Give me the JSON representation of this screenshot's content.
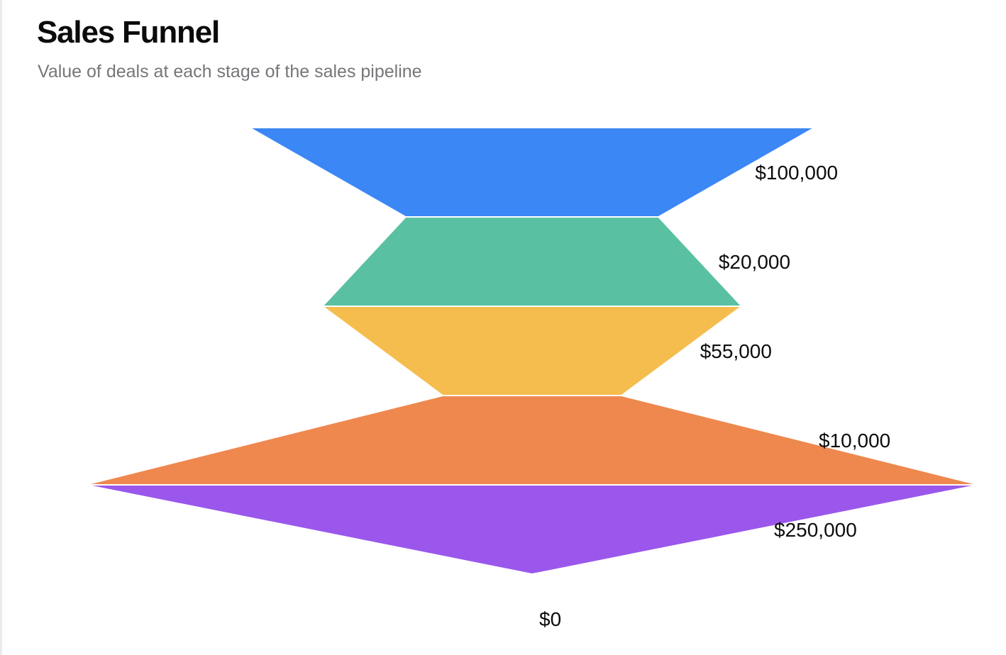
{
  "header": {
    "title": "Sales Funnel",
    "subtitle": "Value of deals at each stage of the sales pipeline"
  },
  "chart_data": {
    "type": "funnel",
    "title": "Sales Funnel",
    "subtitle": "Value of deals at each stage of the sales pipeline",
    "series": [
      {
        "values": [
          100000,
          20000,
          55000,
          10000,
          250000,
          0
        ],
        "labels": [
          "$100,000",
          "$20,000",
          "$55,000",
          "$10,000",
          "$250,000",
          "$0"
        ],
        "colors": [
          "#3b87f5",
          "#59c1a2",
          "#f5bd4d",
          "#ee884f",
          "#9b57ec",
          "#9b57ec"
        ]
      }
    ],
    "stroke_color": "#ffffff",
    "grid": false,
    "legend": "none"
  }
}
